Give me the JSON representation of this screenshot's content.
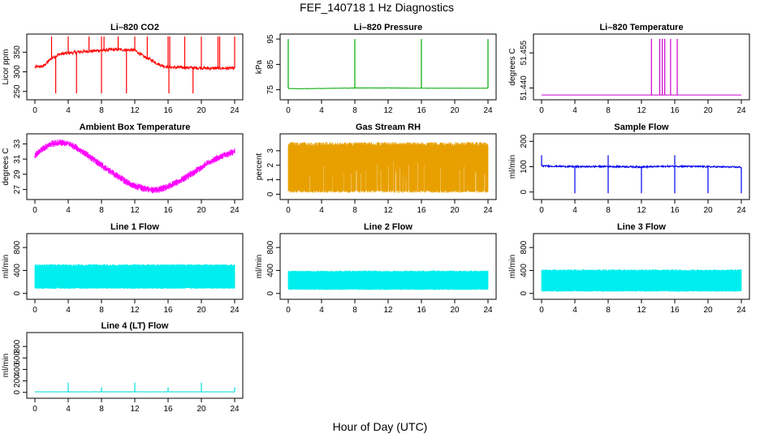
{
  "figure": {
    "title": "FEF_140718  1 Hz Diagnostics",
    "xlabel": "Hour of Day (UTC)"
  },
  "chart_data": [
    {
      "type": "line",
      "title": "Li–820 CO2",
      "xlabel": "",
      "ylabel": "Licor ppm",
      "color": "#ff0000",
      "xlim": [
        0,
        24
      ],
      "ylim": [
        235,
        390
      ],
      "x_ticks": [
        "0",
        "4",
        "8",
        "12",
        "16",
        "20",
        "24"
      ],
      "y_ticks": [
        "250",
        "300",
        "350"
      ],
      "series": [
        {
          "x": [
            0,
            1,
            2,
            3,
            4,
            5,
            6,
            7,
            8,
            9,
            10,
            11,
            12,
            13,
            14,
            15,
            16,
            17,
            18,
            19,
            20,
            21,
            22,
            23,
            24
          ],
          "y": [
            312,
            314,
            335,
            345,
            348,
            350,
            352,
            353,
            355,
            356,
            357,
            356,
            355,
            340,
            330,
            318,
            312,
            311,
            311,
            310,
            310,
            309,
            309,
            309,
            309
          ]
        }
      ]
    },
    {
      "type": "line",
      "title": "Li–820 Pressure",
      "xlabel": "",
      "ylabel": "kPa",
      "color": "#00aa00",
      "xlim": [
        0,
        24
      ],
      "ylim": [
        72,
        96
      ],
      "x_ticks": [
        "0",
        "4",
        "8",
        "12",
        "16",
        "20",
        "24"
      ],
      "y_ticks": [
        "75",
        "85",
        "95"
      ],
      "series": [
        {
          "x": [
            0,
            1,
            4,
            8,
            12,
            16,
            20,
            24
          ],
          "y": [
            75.5,
            75.4,
            75.5,
            75.7,
            75.7,
            75.6,
            75.6,
            75.6
          ]
        }
      ]
    },
    {
      "type": "line",
      "title": "Li–820 Temperature",
      "xlabel": "",
      "ylabel": "degrees C",
      "color": "#cc00cc",
      "xlim": [
        0,
        24
      ],
      "ylim": [
        51.436,
        51.462
      ],
      "x_ticks": [
        "0",
        "4",
        "8",
        "12",
        "16",
        "20",
        "24"
      ],
      "y_ticks": [
        "51.440",
        "51.455"
      ],
      "series": [
        {
          "x": [
            0,
            24
          ],
          "y": [
            51.437,
            51.437
          ]
        }
      ]
    },
    {
      "type": "line",
      "title": "Ambient Box Temperature",
      "xlabel": "",
      "ylabel": "degrees C",
      "color": "#ff00ff",
      "xlim": [
        0,
        24
      ],
      "ylim": [
        26,
        34
      ],
      "x_ticks": [
        "0",
        "4",
        "8",
        "12",
        "16",
        "20",
        "24"
      ],
      "y_ticks": [
        "27",
        "29",
        "31",
        "33"
      ],
      "series": [
        {
          "x": [
            0,
            1,
            2,
            3,
            4,
            5,
            6,
            7,
            8,
            9,
            10,
            11,
            12,
            13,
            14,
            15,
            16,
            17,
            18,
            19,
            20,
            21,
            22,
            23,
            24
          ],
          "y": [
            31.5,
            32.4,
            33.0,
            33.2,
            33.0,
            32.5,
            31.8,
            31.0,
            30.2,
            29.4,
            28.7,
            28.0,
            27.5,
            27.1,
            26.9,
            27.0,
            27.4,
            27.9,
            28.5,
            29.2,
            29.9,
            30.6,
            31.2,
            31.6,
            32.0
          ]
        }
      ]
    },
    {
      "type": "area",
      "title": "Gas Stream RH",
      "xlabel": "",
      "ylabel": "percent",
      "color": "#e8a000",
      "xlim": [
        0,
        24
      ],
      "ylim": [
        -0.2,
        4.0
      ],
      "x_ticks": [
        "0",
        "4",
        "8",
        "12",
        "16",
        "20",
        "24"
      ],
      "y_ticks": [
        "0",
        "1",
        "2",
        "3"
      ],
      "series": [
        {
          "x": [
            0,
            24
          ],
          "low": [
            0.1,
            0.1
          ],
          "high": [
            3.6,
            3.6
          ]
        }
      ]
    },
    {
      "type": "line",
      "title": "Sample Flow",
      "xlabel": "",
      "ylabel": "ml/min",
      "color": "#0000ee",
      "xlim": [
        0,
        24
      ],
      "ylim": [
        -20,
        220
      ],
      "x_ticks": [
        "0",
        "4",
        "8",
        "12",
        "16",
        "20",
        "24"
      ],
      "y_ticks": [
        "0",
        "100",
        "200"
      ],
      "series": [
        {
          "x": [
            0,
            4,
            8,
            12,
            16,
            20,
            24
          ],
          "y": [
            103,
            100,
            101,
            99,
            102,
            100,
            98
          ]
        }
      ]
    },
    {
      "type": "area",
      "title": "Line 1 Flow",
      "xlabel": "",
      "ylabel": "ml/min",
      "color": "#00eeee",
      "xlim": [
        0,
        24
      ],
      "ylim": [
        -60,
        1000
      ],
      "x_ticks": [
        "0",
        "4",
        "8",
        "12",
        "16",
        "20",
        "24"
      ],
      "y_ticks": [
        "0",
        "400",
        "800"
      ],
      "series": [
        {
          "x": [
            0,
            24
          ],
          "low": [
            80,
            80
          ],
          "high": [
            510,
            510
          ]
        }
      ]
    },
    {
      "type": "area",
      "title": "Line 2 Flow",
      "xlabel": "",
      "ylabel": "ml/min",
      "color": "#00eeee",
      "xlim": [
        0,
        24
      ],
      "ylim": [
        -60,
        1000
      ],
      "x_ticks": [
        "0",
        "4",
        "8",
        "12",
        "16",
        "20",
        "24"
      ],
      "y_ticks": [
        "0",
        "400",
        "800"
      ],
      "series": [
        {
          "x": [
            0,
            24
          ],
          "low": [
            60,
            60
          ],
          "high": [
            400,
            400
          ]
        }
      ]
    },
    {
      "type": "area",
      "title": "Line 3 Flow",
      "xlabel": "",
      "ylabel": "ml/min",
      "color": "#00eeee",
      "xlim": [
        0,
        24
      ],
      "ylim": [
        -60,
        1000
      ],
      "x_ticks": [
        "0",
        "4",
        "8",
        "12",
        "16",
        "20",
        "24"
      ],
      "y_ticks": [
        "0",
        "400",
        "800"
      ],
      "series": [
        {
          "x": [
            0,
            24
          ],
          "low": [
            30,
            30
          ],
          "high": [
            420,
            420
          ]
        }
      ]
    },
    {
      "type": "line",
      "title": "Line 4 (LT) Flow",
      "xlabel": "",
      "ylabel": "ml/min",
      "color": "#00dddd",
      "xlim": [
        0,
        24
      ],
      "ylim": [
        -60,
        1000
      ],
      "x_ticks": [
        "0",
        "4",
        "8",
        "12",
        "16",
        "20",
        "24"
      ],
      "y_ticks": [
        "0",
        "200",
        "400",
        "600",
        "800"
      ],
      "series": [
        {
          "x": [
            0,
            4,
            8,
            12,
            16,
            20,
            24
          ],
          "y": [
            10,
            10,
            10,
            10,
            10,
            10,
            10
          ]
        }
      ]
    }
  ]
}
